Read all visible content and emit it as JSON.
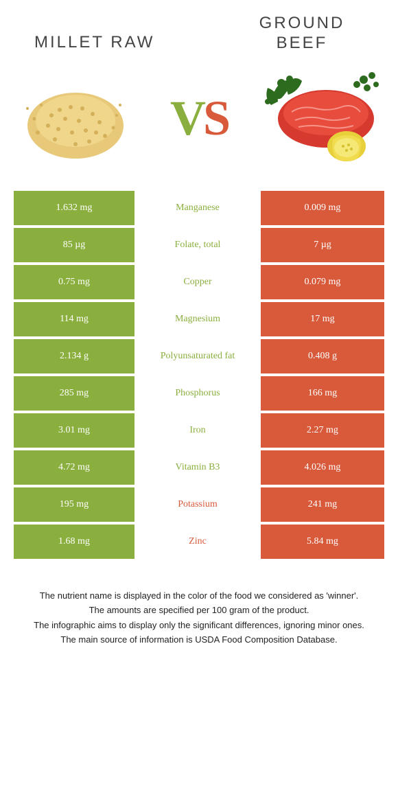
{
  "left_food_title": "MILLET RAW",
  "right_food_title": "GROUND BEEF",
  "vs_v": "V",
  "vs_s": "S",
  "left_color": "#8aaf3e",
  "right_color": "#d85a3a",
  "rows": [
    {
      "left": "1.632 mg",
      "nutrient": "Manganese",
      "right": "0.009 mg",
      "winner": "left"
    },
    {
      "left": "85 µg",
      "nutrient": "Folate, total",
      "right": "7 µg",
      "winner": "left"
    },
    {
      "left": "0.75 mg",
      "nutrient": "Copper",
      "right": "0.079 mg",
      "winner": "left"
    },
    {
      "left": "114 mg",
      "nutrient": "Magnesium",
      "right": "17 mg",
      "winner": "left"
    },
    {
      "left": "2.134 g",
      "nutrient": "Polyunsaturated fat",
      "right": "0.408 g",
      "winner": "left"
    },
    {
      "left": "285 mg",
      "nutrient": "Phosphorus",
      "right": "166 mg",
      "winner": "left"
    },
    {
      "left": "3.01 mg",
      "nutrient": "Iron",
      "right": "2.27 mg",
      "winner": "left"
    },
    {
      "left": "4.72 mg",
      "nutrient": "Vitamin B3",
      "right": "4.026 mg",
      "winner": "left"
    },
    {
      "left": "195 mg",
      "nutrient": "Potassium",
      "right": "241 mg",
      "winner": "right"
    },
    {
      "left": "1.68 mg",
      "nutrient": "Zinc",
      "right": "5.84 mg",
      "winner": "right"
    }
  ],
  "footnotes": {
    "line1": "The nutrient name is displayed in the color of the food we considered as 'winner'.",
    "line2": "The amounts are specified per 100 gram of the product.",
    "line3": "The infographic aims to display only the significant differences, ignoring minor ones.",
    "line4": "The main source of information is USDA Food Composition Database."
  }
}
